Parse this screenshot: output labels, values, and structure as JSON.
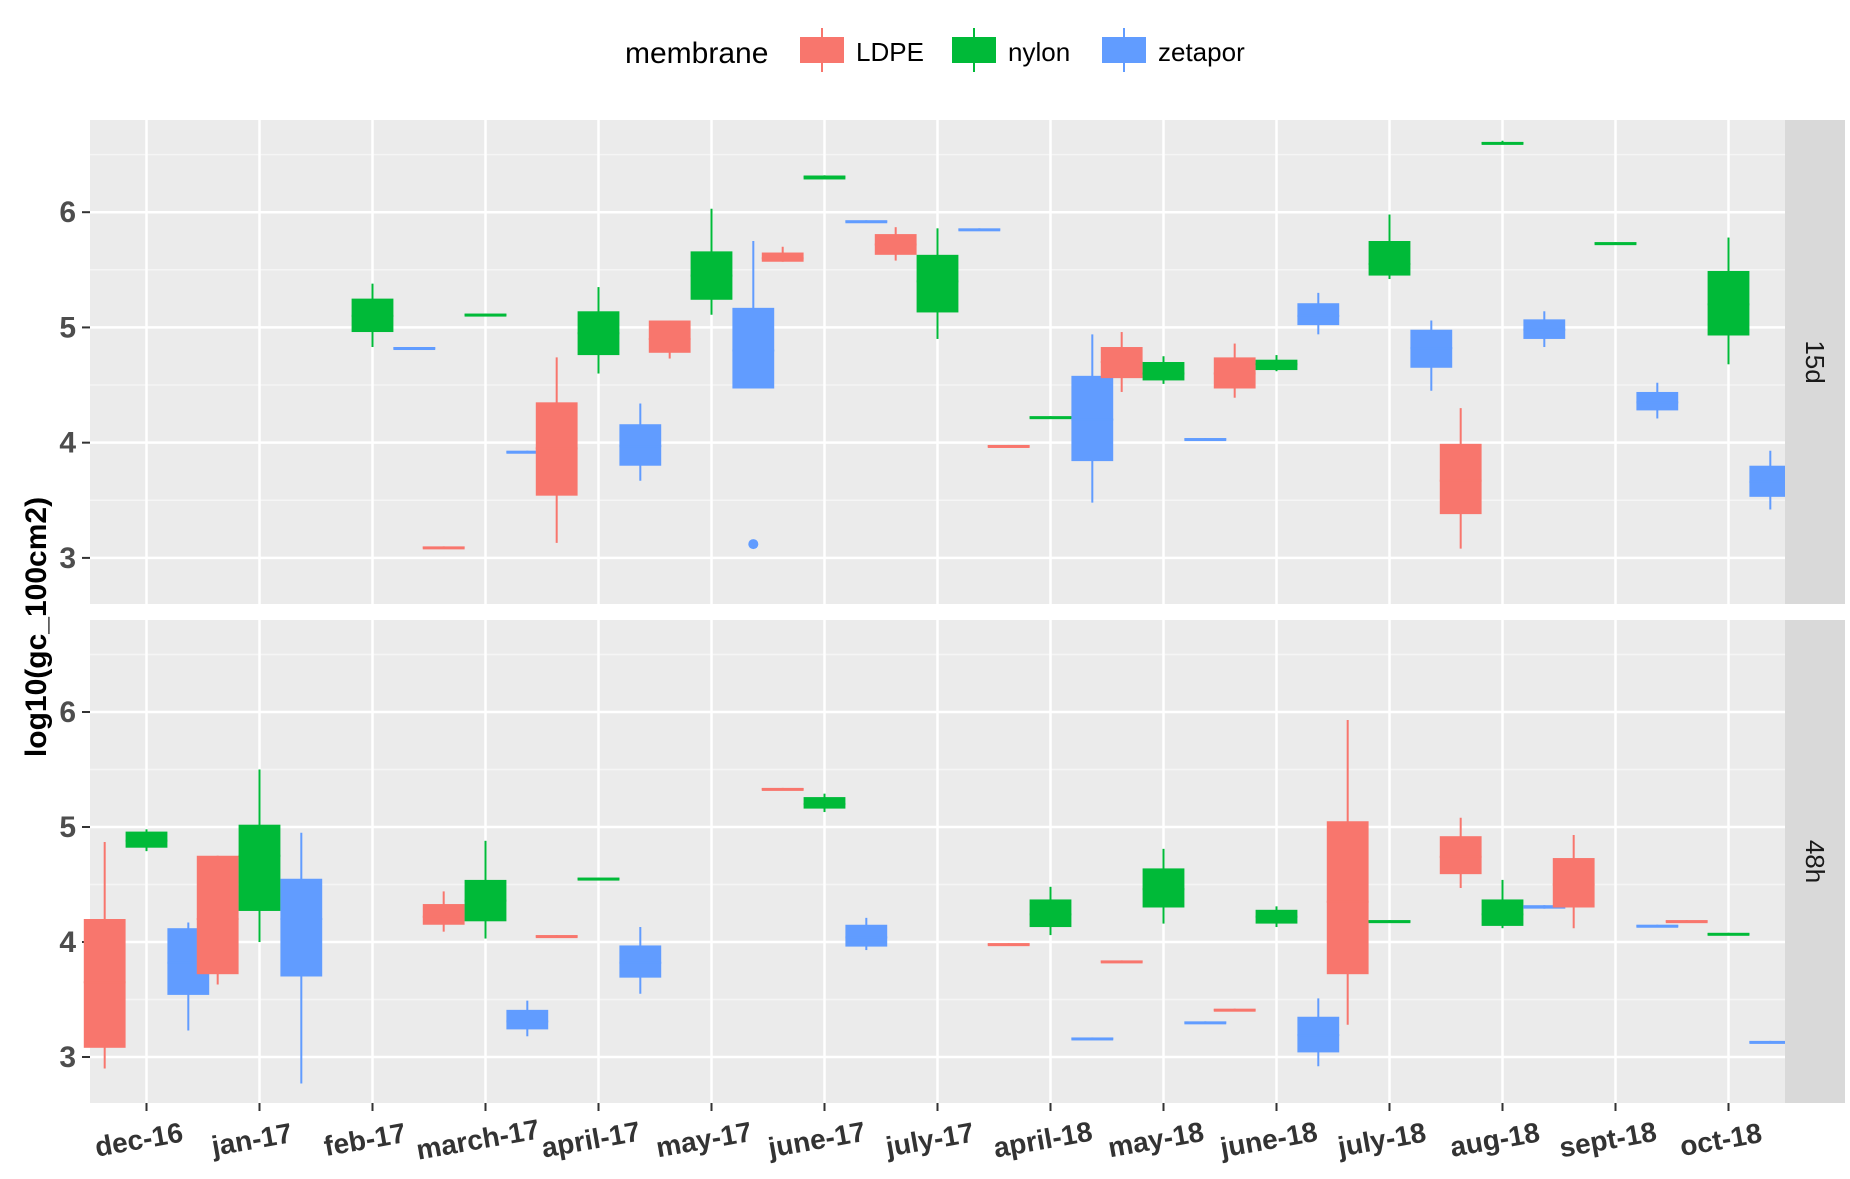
{
  "chart_data": {
    "type": "boxplot",
    "ylabel": "log10(gc_100cm2)",
    "xlabel": "",
    "yticks": [
      3,
      4,
      5,
      6
    ],
    "ylim": [
      2.6,
      6.8
    ],
    "categories": [
      "dec-16",
      "jan-17",
      "feb-17",
      "march-17",
      "april-17",
      "may-17",
      "june-17",
      "july-17",
      "april-18",
      "may-18",
      "june-18",
      "july-18",
      "aug-18",
      "sept-18",
      "oct-18"
    ],
    "legend": {
      "title": "membrane",
      "position": "top",
      "items": [
        {
          "name": "LDPE",
          "color": "#F8766D"
        },
        {
          "name": "nylon",
          "color": "#00BA38"
        },
        {
          "name": "zetapor",
          "color": "#619CFF"
        }
      ]
    },
    "panels": [
      {
        "strip": "15d",
        "boxes": [
          {
            "category": "feb-17",
            "series": "nylon",
            "min": 4.83,
            "q1": 4.96,
            "median": 5.1,
            "q3": 5.25,
            "max": 5.38
          },
          {
            "category": "feb-17",
            "series": "zetapor",
            "min": 4.82,
            "q1": 4.82,
            "median": 4.82,
            "q3": 4.83,
            "max": 4.83
          },
          {
            "category": "march-17",
            "series": "LDPE",
            "min": 3.09,
            "q1": 3.09,
            "median": 3.09,
            "q3": 3.1,
            "max": 3.1
          },
          {
            "category": "march-17",
            "series": "nylon",
            "min": 5.11,
            "q1": 5.11,
            "median": 5.11,
            "q3": 5.12,
            "max": 5.12
          },
          {
            "category": "march-17",
            "series": "zetapor",
            "min": 3.92,
            "q1": 3.92,
            "median": 3.92,
            "q3": 3.93,
            "max": 3.93
          },
          {
            "category": "april-17",
            "series": "LDPE",
            "min": 3.13,
            "q1": 3.54,
            "median": 3.95,
            "q3": 4.35,
            "max": 4.74
          },
          {
            "category": "april-17",
            "series": "nylon",
            "min": 4.6,
            "q1": 4.76,
            "median": 4.95,
            "q3": 5.14,
            "max": 5.35
          },
          {
            "category": "april-17",
            "series": "zetapor",
            "min": 3.67,
            "q1": 3.8,
            "median": 3.97,
            "q3": 4.16,
            "max": 4.34
          },
          {
            "category": "may-17",
            "series": "LDPE",
            "min": 4.73,
            "q1": 4.78,
            "median": 4.9,
            "q3": 5.06,
            "max": 5.06
          },
          {
            "category": "may-17",
            "series": "nylon",
            "min": 5.11,
            "q1": 5.24,
            "median": 5.45,
            "q3": 5.66,
            "max": 6.03
          },
          {
            "category": "may-17",
            "series": "zetapor",
            "min": 4.47,
            "q1": 4.47,
            "median": 4.8,
            "q3": 5.17,
            "max": 5.75,
            "outliers": [
              3.12
            ]
          },
          {
            "category": "june-17",
            "series": "LDPE",
            "min": 5.57,
            "q1": 5.57,
            "median": 5.6,
            "q3": 5.65,
            "max": 5.7
          },
          {
            "category": "june-17",
            "series": "nylon",
            "min": 6.3,
            "q1": 6.3,
            "median": 6.31,
            "q3": 6.31,
            "max": 6.32
          },
          {
            "category": "june-17",
            "series": "zetapor",
            "min": 5.92,
            "q1": 5.92,
            "median": 5.92,
            "q3": 5.93,
            "max": 5.93
          },
          {
            "category": "july-17",
            "series": "LDPE",
            "min": 5.58,
            "q1": 5.63,
            "median": 5.72,
            "q3": 5.81,
            "max": 5.87
          },
          {
            "category": "july-17",
            "series": "nylon",
            "min": 4.9,
            "q1": 5.13,
            "median": 5.4,
            "q3": 5.63,
            "max": 5.86
          },
          {
            "category": "july-17",
            "series": "zetapor",
            "min": 5.85,
            "q1": 5.85,
            "median": 5.85,
            "q3": 5.86,
            "max": 5.86
          },
          {
            "category": "april-18",
            "series": "LDPE",
            "min": 3.97,
            "q1": 3.97,
            "median": 3.97,
            "q3": 3.98,
            "max": 3.98
          },
          {
            "category": "april-18",
            "series": "nylon",
            "min": 4.22,
            "q1": 4.22,
            "median": 4.22,
            "q3": 4.23,
            "max": 4.23
          },
          {
            "category": "april-18",
            "series": "zetapor",
            "min": 3.48,
            "q1": 3.84,
            "median": 4.2,
            "q3": 4.58,
            "max": 4.94
          },
          {
            "category": "may-18",
            "series": "LDPE",
            "min": 4.44,
            "q1": 4.56,
            "median": 4.7,
            "q3": 4.83,
            "max": 4.96
          },
          {
            "category": "may-18",
            "series": "nylon",
            "min": 4.51,
            "q1": 4.54,
            "median": 4.6,
            "q3": 4.7,
            "max": 4.75
          },
          {
            "category": "may-18",
            "series": "zetapor",
            "min": 4.03,
            "q1": 4.03,
            "median": 4.03,
            "q3": 4.04,
            "max": 4.04
          },
          {
            "category": "june-18",
            "series": "LDPE",
            "min": 4.39,
            "q1": 4.47,
            "median": 4.6,
            "q3": 4.74,
            "max": 4.86
          },
          {
            "category": "june-18",
            "series": "nylon",
            "min": 4.62,
            "q1": 4.63,
            "median": 4.68,
            "q3": 4.72,
            "max": 4.76
          },
          {
            "category": "june-18",
            "series": "zetapor",
            "min": 4.94,
            "q1": 5.02,
            "median": 5.1,
            "q3": 5.21,
            "max": 5.3
          },
          {
            "category": "july-18",
            "series": "nylon",
            "min": 5.42,
            "q1": 5.45,
            "median": 5.55,
            "q3": 5.75,
            "max": 5.98
          },
          {
            "category": "july-18",
            "series": "zetapor",
            "min": 4.45,
            "q1": 4.65,
            "median": 4.82,
            "q3": 4.98,
            "max": 5.06
          },
          {
            "category": "aug-18",
            "series": "LDPE",
            "min": 3.08,
            "q1": 3.38,
            "median": 3.67,
            "q3": 3.99,
            "max": 4.3
          },
          {
            "category": "aug-18",
            "series": "nylon",
            "min": 6.59,
            "q1": 6.59,
            "median": 6.6,
            "q3": 6.61,
            "max": 6.62
          },
          {
            "category": "aug-18",
            "series": "zetapor",
            "min": 4.83,
            "q1": 4.9,
            "median": 4.98,
            "q3": 5.07,
            "max": 5.14
          },
          {
            "category": "sept-18",
            "series": "nylon",
            "min": 5.73,
            "q1": 5.73,
            "median": 5.73,
            "q3": 5.74,
            "max": 5.74
          },
          {
            "category": "sept-18",
            "series": "zetapor",
            "min": 4.21,
            "q1": 4.28,
            "median": 4.35,
            "q3": 4.44,
            "max": 4.52
          },
          {
            "category": "oct-18",
            "series": "nylon",
            "min": 4.68,
            "q1": 4.93,
            "median": 5.2,
            "q3": 5.49,
            "max": 5.78
          },
          {
            "category": "oct-18",
            "series": "zetapor",
            "min": 3.42,
            "q1": 3.53,
            "median": 3.66,
            "q3": 3.8,
            "max": 3.93
          }
        ]
      },
      {
        "strip": "48h",
        "boxes": [
          {
            "category": "dec-16",
            "series": "LDPE",
            "min": 2.9,
            "q1": 3.08,
            "median": 3.65,
            "q3": 4.2,
            "max": 4.87
          },
          {
            "category": "dec-16",
            "series": "nylon",
            "min": 4.79,
            "q1": 4.82,
            "median": 4.88,
            "q3": 4.96,
            "max": 4.98
          },
          {
            "category": "dec-16",
            "series": "zetapor",
            "min": 3.23,
            "q1": 3.54,
            "median": 3.82,
            "q3": 4.12,
            "max": 4.17
          },
          {
            "category": "jan-17",
            "series": "LDPE",
            "min": 3.63,
            "q1": 3.72,
            "median": 4.2,
            "q3": 4.75,
            "max": 4.75
          },
          {
            "category": "jan-17",
            "series": "nylon",
            "min": 4.0,
            "q1": 4.27,
            "median": 4.75,
            "q3": 5.02,
            "max": 5.5
          },
          {
            "category": "jan-17",
            "series": "zetapor",
            "min": 2.77,
            "q1": 3.7,
            "median": 4.2,
            "q3": 4.55,
            "max": 4.95
          },
          {
            "category": "march-17",
            "series": "LDPE",
            "min": 4.09,
            "q1": 4.15,
            "median": 4.22,
            "q3": 4.33,
            "max": 4.44
          },
          {
            "category": "march-17",
            "series": "nylon",
            "min": 4.03,
            "q1": 4.18,
            "median": 4.36,
            "q3": 4.54,
            "max": 4.88
          },
          {
            "category": "march-17",
            "series": "zetapor",
            "min": 3.18,
            "q1": 3.24,
            "median": 3.31,
            "q3": 3.41,
            "max": 3.49
          },
          {
            "category": "april-17",
            "series": "LDPE",
            "min": 4.05,
            "q1": 4.05,
            "median": 4.05,
            "q3": 4.06,
            "max": 4.06
          },
          {
            "category": "april-17",
            "series": "nylon",
            "min": 4.55,
            "q1": 4.55,
            "median": 4.55,
            "q3": 4.56,
            "max": 4.56
          },
          {
            "category": "april-17",
            "series": "zetapor",
            "min": 3.55,
            "q1": 3.69,
            "median": 3.82,
            "q3": 3.97,
            "max": 4.13
          },
          {
            "category": "june-17",
            "series": "LDPE",
            "min": 5.33,
            "q1": 5.33,
            "median": 5.33,
            "q3": 5.34,
            "max": 5.34
          },
          {
            "category": "june-17",
            "series": "nylon",
            "min": 5.13,
            "q1": 5.16,
            "median": 5.2,
            "q3": 5.26,
            "max": 5.29
          },
          {
            "category": "june-17",
            "series": "zetapor",
            "min": 3.93,
            "q1": 3.96,
            "median": 4.04,
            "q3": 4.15,
            "max": 4.21
          },
          {
            "category": "april-18",
            "series": "LDPE",
            "min": 3.98,
            "q1": 3.98,
            "median": 3.98,
            "q3": 3.99,
            "max": 3.99
          },
          {
            "category": "april-18",
            "series": "nylon",
            "min": 4.06,
            "q1": 4.13,
            "median": 4.24,
            "q3": 4.37,
            "max": 4.48
          },
          {
            "category": "april-18",
            "series": "zetapor",
            "min": 3.16,
            "q1": 3.16,
            "median": 3.16,
            "q3": 3.17,
            "max": 3.17
          },
          {
            "category": "may-18",
            "series": "LDPE",
            "min": 3.83,
            "q1": 3.83,
            "median": 3.83,
            "q3": 3.84,
            "max": 3.84
          },
          {
            "category": "may-18",
            "series": "nylon",
            "min": 4.16,
            "q1": 4.3,
            "median": 4.46,
            "q3": 4.64,
            "max": 4.81
          },
          {
            "category": "may-18",
            "series": "zetapor",
            "min": 3.3,
            "q1": 3.3,
            "median": 3.3,
            "q3": 3.31,
            "max": 3.31
          },
          {
            "category": "june-18",
            "series": "LDPE",
            "min": 3.41,
            "q1": 3.41,
            "median": 3.41,
            "q3": 3.42,
            "max": 3.42
          },
          {
            "category": "june-18",
            "series": "nylon",
            "min": 4.13,
            "q1": 4.16,
            "median": 4.22,
            "q3": 4.28,
            "max": 4.31
          },
          {
            "category": "june-18",
            "series": "zetapor",
            "min": 2.92,
            "q1": 3.04,
            "median": 3.19,
            "q3": 3.35,
            "max": 3.51
          },
          {
            "category": "july-18",
            "series": "LDPE",
            "min": 3.28,
            "q1": 3.72,
            "median": 4.35,
            "q3": 5.05,
            "max": 5.93
          },
          {
            "category": "july-18",
            "series": "nylon",
            "min": 4.18,
            "q1": 4.18,
            "median": 4.18,
            "q3": 4.19,
            "max": 4.19
          },
          {
            "category": "aug-18",
            "series": "LDPE",
            "min": 4.47,
            "q1": 4.59,
            "median": 4.74,
            "q3": 4.92,
            "max": 5.08
          },
          {
            "category": "aug-18",
            "series": "nylon",
            "min": 4.12,
            "q1": 4.14,
            "median": 4.24,
            "q3": 4.37,
            "max": 4.54
          },
          {
            "category": "aug-18",
            "series": "zetapor",
            "min": 4.29,
            "q1": 4.29,
            "median": 4.3,
            "q3": 4.32,
            "max": 4.32
          },
          {
            "category": "sept-18",
            "series": "LDPE",
            "min": 4.12,
            "q1": 4.3,
            "median": 4.5,
            "q3": 4.73,
            "max": 4.93
          },
          {
            "category": "sept-18",
            "series": "zetapor",
            "min": 4.14,
            "q1": 4.14,
            "median": 4.14,
            "q3": 4.15,
            "max": 4.15
          },
          {
            "category": "oct-18",
            "series": "LDPE",
            "min": 4.18,
            "q1": 4.18,
            "median": 4.18,
            "q3": 4.19,
            "max": 4.19
          },
          {
            "category": "oct-18",
            "series": "nylon",
            "min": 4.07,
            "q1": 4.07,
            "median": 4.07,
            "q3": 4.08,
            "max": 4.08
          },
          {
            "category": "oct-18",
            "series": "zetapor",
            "min": 3.13,
            "q1": 3.13,
            "median": 3.13,
            "q3": 3.14,
            "max": 3.14
          }
        ]
      }
    ]
  }
}
